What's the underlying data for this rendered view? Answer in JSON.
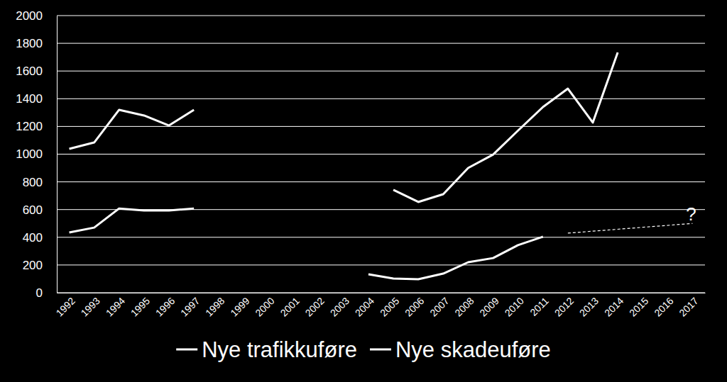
{
  "chart_data": {
    "type": "line",
    "categories": [
      "1992",
      "1993",
      "1994",
      "1995",
      "1996",
      "1997",
      "1998",
      "1999",
      "2000",
      "2001",
      "2002",
      "2003",
      "2004",
      "2005",
      "2006",
      "2007",
      "2008",
      "2009",
      "2010",
      "2011",
      "2012",
      "2013",
      "2014",
      "2015",
      "2016",
      "2017"
    ],
    "series": [
      {
        "name": "Nye trafikkuføre",
        "color": "#ffffff",
        "values": [
          435,
          470,
          608,
          593,
          593,
          608,
          null,
          null,
          null,
          null,
          null,
          null,
          133,
          102,
          97,
          138,
          220,
          250,
          343,
          404,
          null,
          null,
          null,
          null,
          null,
          null
        ]
      },
      {
        "name": "Nye skadeuføre",
        "color": "#ffffff",
        "values": [
          1038,
          1084,
          1320,
          1279,
          1207,
          1320,
          null,
          null,
          null,
          null,
          null,
          null,
          null,
          742,
          655,
          711,
          900,
          997,
          1170,
          1340,
          1473,
          1228,
          1734,
          null,
          null,
          null
        ]
      }
    ],
    "annotations": [
      {
        "type": "line",
        "x": [
          "2012",
          "2017"
        ],
        "y": [
          430,
          500
        ],
        "line_style": "dashed",
        "color": "#ffffff",
        "text": "?"
      }
    ],
    "ylim": [
      0,
      2000
    ],
    "yticks": [
      0,
      200,
      400,
      600,
      800,
      1000,
      1200,
      1400,
      1600,
      1800,
      2000
    ],
    "grid": true,
    "legend": "bottom"
  }
}
